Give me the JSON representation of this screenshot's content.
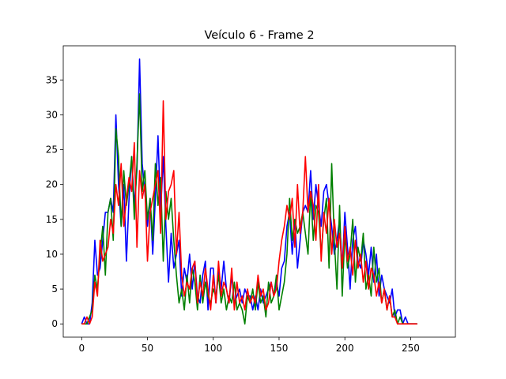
{
  "chart_data": {
    "type": "line",
    "title": "Veículo 6 - Frame 2",
    "xlabel": "",
    "ylabel": "",
    "xlim": [
      -14,
      284
    ],
    "ylim": [
      -1.9,
      39.9
    ],
    "xticks": [
      0,
      50,
      100,
      150,
      200,
      250
    ],
    "yticks": [
      0,
      5,
      10,
      15,
      20,
      25,
      30,
      35
    ],
    "grid": false,
    "legend": "none",
    "series": [
      {
        "color": "#0000ff",
        "x": [
          0,
          2,
          4,
          6,
          8,
          10,
          12,
          14,
          16,
          18,
          20,
          22,
          24,
          26,
          28,
          30,
          32,
          34,
          36,
          38,
          40,
          42,
          44,
          46,
          48,
          50,
          52,
          54,
          56,
          58,
          60,
          62,
          64,
          66,
          68,
          70,
          72,
          74,
          76,
          78,
          80,
          82,
          84,
          86,
          88,
          90,
          92,
          94,
          96,
          98,
          100,
          102,
          104,
          106,
          108,
          110,
          112,
          114,
          116,
          118,
          120,
          122,
          124,
          126,
          128,
          130,
          132,
          134,
          136,
          138,
          140,
          142,
          144,
          146,
          148,
          150,
          152,
          154,
          156,
          158,
          160,
          162,
          164,
          166,
          168,
          170,
          172,
          174,
          176,
          178,
          180,
          182,
          184,
          186,
          188,
          190,
          192,
          194,
          196,
          198,
          200,
          202,
          204,
          206,
          208,
          210,
          212,
          214,
          216,
          218,
          220,
          222,
          224,
          226,
          228,
          230,
          232,
          234,
          236,
          238,
          240,
          242,
          244,
          246,
          248,
          250,
          252,
          254,
          255
        ],
        "y": [
          0,
          1,
          0,
          0,
          3,
          12,
          7,
          8,
          12,
          16,
          16,
          18,
          16,
          30,
          20,
          14,
          20,
          9,
          18,
          24,
          17,
          22,
          38,
          23,
          19,
          14,
          18,
          10,
          18,
          27,
          16,
          24,
          14,
          6,
          13,
          8,
          10,
          12,
          4,
          8,
          6,
          10,
          5,
          9,
          4,
          3,
          7,
          9,
          2,
          8,
          8,
          3,
          8,
          5,
          9,
          5,
          3,
          7,
          3,
          4,
          5,
          3,
          5,
          4,
          4,
          2,
          4,
          2,
          5,
          3,
          4,
          5,
          6,
          4,
          6,
          4,
          8,
          9,
          14,
          16,
          10,
          15,
          8,
          12,
          16,
          17,
          16,
          22,
          15,
          20,
          17,
          14,
          19,
          20,
          17,
          14,
          10,
          12,
          15,
          8,
          16,
          11,
          5,
          12,
          14,
          9,
          8,
          12,
          10,
          7,
          11,
          6,
          10,
          4,
          7,
          5,
          4,
          3,
          5,
          1,
          2,
          2,
          0,
          1,
          0,
          0,
          0,
          0,
          0
        ]
      },
      {
        "color": "#008000",
        "x": [
          0,
          2,
          4,
          6,
          8,
          10,
          12,
          14,
          16,
          18,
          20,
          22,
          24,
          26,
          28,
          30,
          32,
          34,
          36,
          38,
          40,
          42,
          44,
          46,
          48,
          50,
          52,
          54,
          56,
          58,
          60,
          62,
          64,
          66,
          68,
          70,
          72,
          74,
          76,
          78,
          80,
          82,
          84,
          86,
          88,
          90,
          92,
          94,
          96,
          98,
          100,
          102,
          104,
          106,
          108,
          110,
          112,
          114,
          116,
          118,
          120,
          122,
          124,
          126,
          128,
          130,
          132,
          134,
          136,
          138,
          140,
          142,
          144,
          146,
          148,
          150,
          152,
          154,
          156,
          158,
          160,
          162,
          164,
          166,
          168,
          170,
          172,
          174,
          176,
          178,
          180,
          182,
          184,
          186,
          188,
          190,
          192,
          194,
          196,
          198,
          200,
          202,
          204,
          206,
          208,
          210,
          212,
          214,
          216,
          218,
          220,
          222,
          224,
          226,
          228,
          230,
          232,
          234,
          236,
          238,
          240,
          242,
          244,
          246,
          248,
          250,
          252,
          254,
          255
        ],
        "y": [
          0,
          0,
          0,
          1,
          2,
          7,
          5,
          10,
          14,
          7,
          16,
          18,
          12,
          28,
          24,
          14,
          22,
          17,
          20,
          24,
          15,
          23,
          33,
          19,
          22,
          15,
          18,
          12,
          23,
          17,
          21,
          9,
          19,
          15,
          18,
          12,
          7,
          3,
          5,
          2,
          7,
          3,
          8,
          6,
          2,
          7,
          3,
          6,
          4,
          3,
          5,
          4,
          7,
          3,
          5,
          2,
          4,
          3,
          6,
          2,
          3,
          2,
          0,
          4,
          3,
          5,
          2,
          6,
          3,
          4,
          1,
          6,
          3,
          4,
          7,
          2,
          4,
          6,
          10,
          18,
          12,
          15,
          13,
          14,
          16,
          13,
          10,
          19,
          12,
          17,
          16,
          10,
          15,
          18,
          8,
          23,
          12,
          5,
          17,
          4,
          13,
          8,
          10,
          15,
          6,
          11,
          9,
          13,
          5,
          7,
          4,
          11,
          6,
          8,
          3,
          5,
          2,
          4,
          1,
          2,
          0,
          1,
          0,
          0,
          0,
          0,
          0,
          0,
          0
        ]
      },
      {
        "color": "#ff0000",
        "x": [
          0,
          2,
          4,
          6,
          8,
          10,
          12,
          14,
          16,
          18,
          20,
          22,
          24,
          26,
          28,
          30,
          32,
          34,
          36,
          38,
          40,
          42,
          44,
          46,
          48,
          50,
          52,
          54,
          56,
          58,
          60,
          62,
          64,
          66,
          68,
          70,
          72,
          74,
          76,
          78,
          80,
          82,
          84,
          86,
          88,
          90,
          92,
          94,
          96,
          98,
          100,
          102,
          104,
          106,
          108,
          110,
          112,
          114,
          116,
          118,
          120,
          122,
          124,
          126,
          128,
          130,
          132,
          134,
          136,
          138,
          140,
          142,
          144,
          146,
          148,
          150,
          152,
          154,
          156,
          158,
          160,
          162,
          164,
          166,
          168,
          170,
          172,
          174,
          176,
          178,
          180,
          182,
          184,
          186,
          188,
          190,
          192,
          194,
          196,
          198,
          200,
          202,
          204,
          206,
          208,
          210,
          212,
          214,
          216,
          218,
          220,
          222,
          224,
          226,
          228,
          230,
          232,
          234,
          236,
          238,
          240,
          242,
          244,
          246,
          248,
          250,
          252,
          254,
          255
        ],
        "y": [
          0,
          0,
          1,
          0,
          1,
          6,
          4,
          12,
          9,
          10,
          11,
          15,
          13,
          20,
          17,
          23,
          14,
          18,
          21,
          19,
          26,
          11,
          22,
          18,
          20,
          9,
          16,
          18,
          20,
          22,
          13,
          32,
          15,
          19,
          20,
          22,
          10,
          16,
          7,
          4,
          6,
          5,
          8,
          9,
          3,
          6,
          4,
          8,
          5,
          2,
          7,
          3,
          9,
          4,
          6,
          5,
          3,
          8,
          2,
          6,
          3,
          4,
          2,
          5,
          3,
          4,
          3,
          7,
          4,
          5,
          2,
          3,
          6,
          4,
          5,
          9,
          12,
          14,
          17,
          15,
          18,
          11,
          20,
          13,
          16,
          24,
          16,
          19,
          17,
          12,
          20,
          9,
          16,
          13,
          18,
          10,
          15,
          11,
          13,
          8,
          14,
          9,
          11,
          7,
          12,
          8,
          10,
          6,
          9,
          5,
          8,
          7,
          4,
          6,
          3,
          5,
          2,
          4,
          1,
          1,
          0,
          0,
          0,
          0,
          0,
          0,
          0,
          0,
          0
        ]
      }
    ]
  }
}
